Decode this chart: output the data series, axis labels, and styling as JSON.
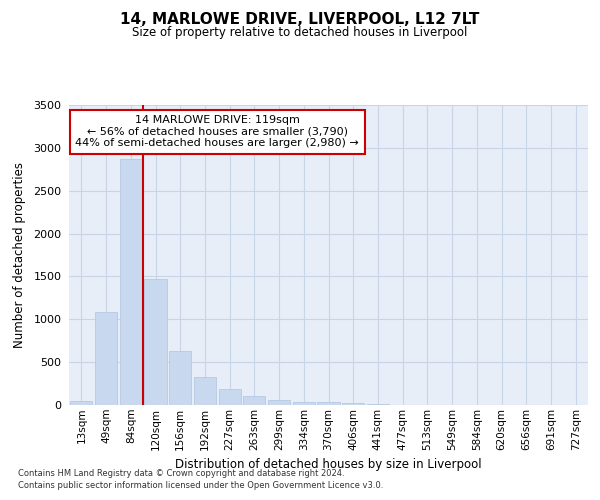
{
  "title1": "14, MARLOWE DRIVE, LIVERPOOL, L12 7LT",
  "title2": "Size of property relative to detached houses in Liverpool",
  "xlabel": "Distribution of detached houses by size in Liverpool",
  "ylabel": "Number of detached properties",
  "categories": [
    "13sqm",
    "49sqm",
    "84sqm",
    "120sqm",
    "156sqm",
    "192sqm",
    "227sqm",
    "263sqm",
    "299sqm",
    "334sqm",
    "370sqm",
    "406sqm",
    "441sqm",
    "477sqm",
    "513sqm",
    "549sqm",
    "584sqm",
    "620sqm",
    "656sqm",
    "691sqm",
    "727sqm"
  ],
  "values": [
    50,
    1090,
    2870,
    1470,
    635,
    325,
    185,
    100,
    60,
    40,
    30,
    20,
    10,
    5,
    3,
    2,
    1,
    0,
    0,
    0,
    0
  ],
  "bar_color": "#c8d8ee",
  "bar_edge_color": "#b0c4de",
  "vline_color": "#cc0000",
  "vline_x": 2.5,
  "annotation_line1": "14 MARLOWE DRIVE: 119sqm",
  "annotation_line2": "← 56% of detached houses are smaller (3,790)",
  "annotation_line3": "44% of semi-detached houses are larger (2,980) →",
  "ann_box_edgecolor": "#cc0000",
  "ylim_max": 3500,
  "yticks": [
    0,
    500,
    1000,
    1500,
    2000,
    2500,
    3000,
    3500
  ],
  "grid_color": "#c8d4e8",
  "bg_color": "#e8eef8",
  "footnote1": "Contains HM Land Registry data © Crown copyright and database right 2024.",
  "footnote2": "Contains public sector information licensed under the Open Government Licence v3.0."
}
